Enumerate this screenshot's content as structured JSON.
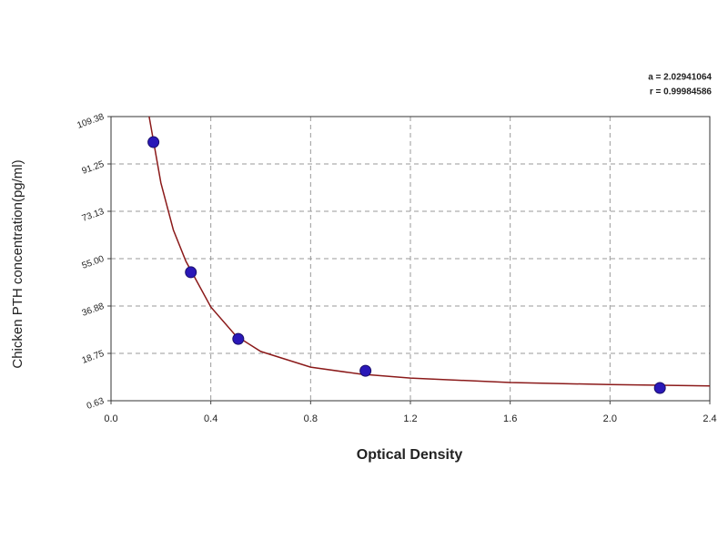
{
  "chart_data": {
    "type": "scatter",
    "xlabel": "Optical Density",
    "ylabel": "Chicken PTH concentration(pg/ml)",
    "annotations": [
      "a = 2.02941064",
      "r = 0.99984586"
    ],
    "x": [
      0.17,
      0.32,
      0.51,
      1.02,
      2.2
    ],
    "values": [
      99.6,
      49.8,
      24.3,
      12.1,
      5.5
    ],
    "color": "#2a18b8",
    "fit": {
      "color": "#8b1a1a",
      "x": [
        0.153,
        0.2,
        0.25,
        0.3,
        0.4,
        0.5,
        0.6,
        0.8,
        1.0,
        1.2,
        1.6,
        2.0,
        2.4
      ],
      "values": [
        109.38,
        84,
        66,
        54,
        36.5,
        25.5,
        19.5,
        13.5,
        10.8,
        9.3,
        7.6,
        6.8,
        6.3
      ]
    },
    "xlim": [
      0,
      2.4
    ],
    "xticks": [
      {
        "value": 0,
        "label": "0.0"
      },
      0.4,
      0.8,
      1.2,
      1.6,
      {
        "value": 2,
        "label": "2.0"
      },
      2.4
    ],
    "ylim": [
      0.63,
      109.38
    ],
    "yticks": [
      0.63,
      18.75,
      36.88,
      {
        "value": 55,
        "label": "55.00"
      },
      73.13,
      91.25,
      109.38
    ],
    "grid": true
  }
}
